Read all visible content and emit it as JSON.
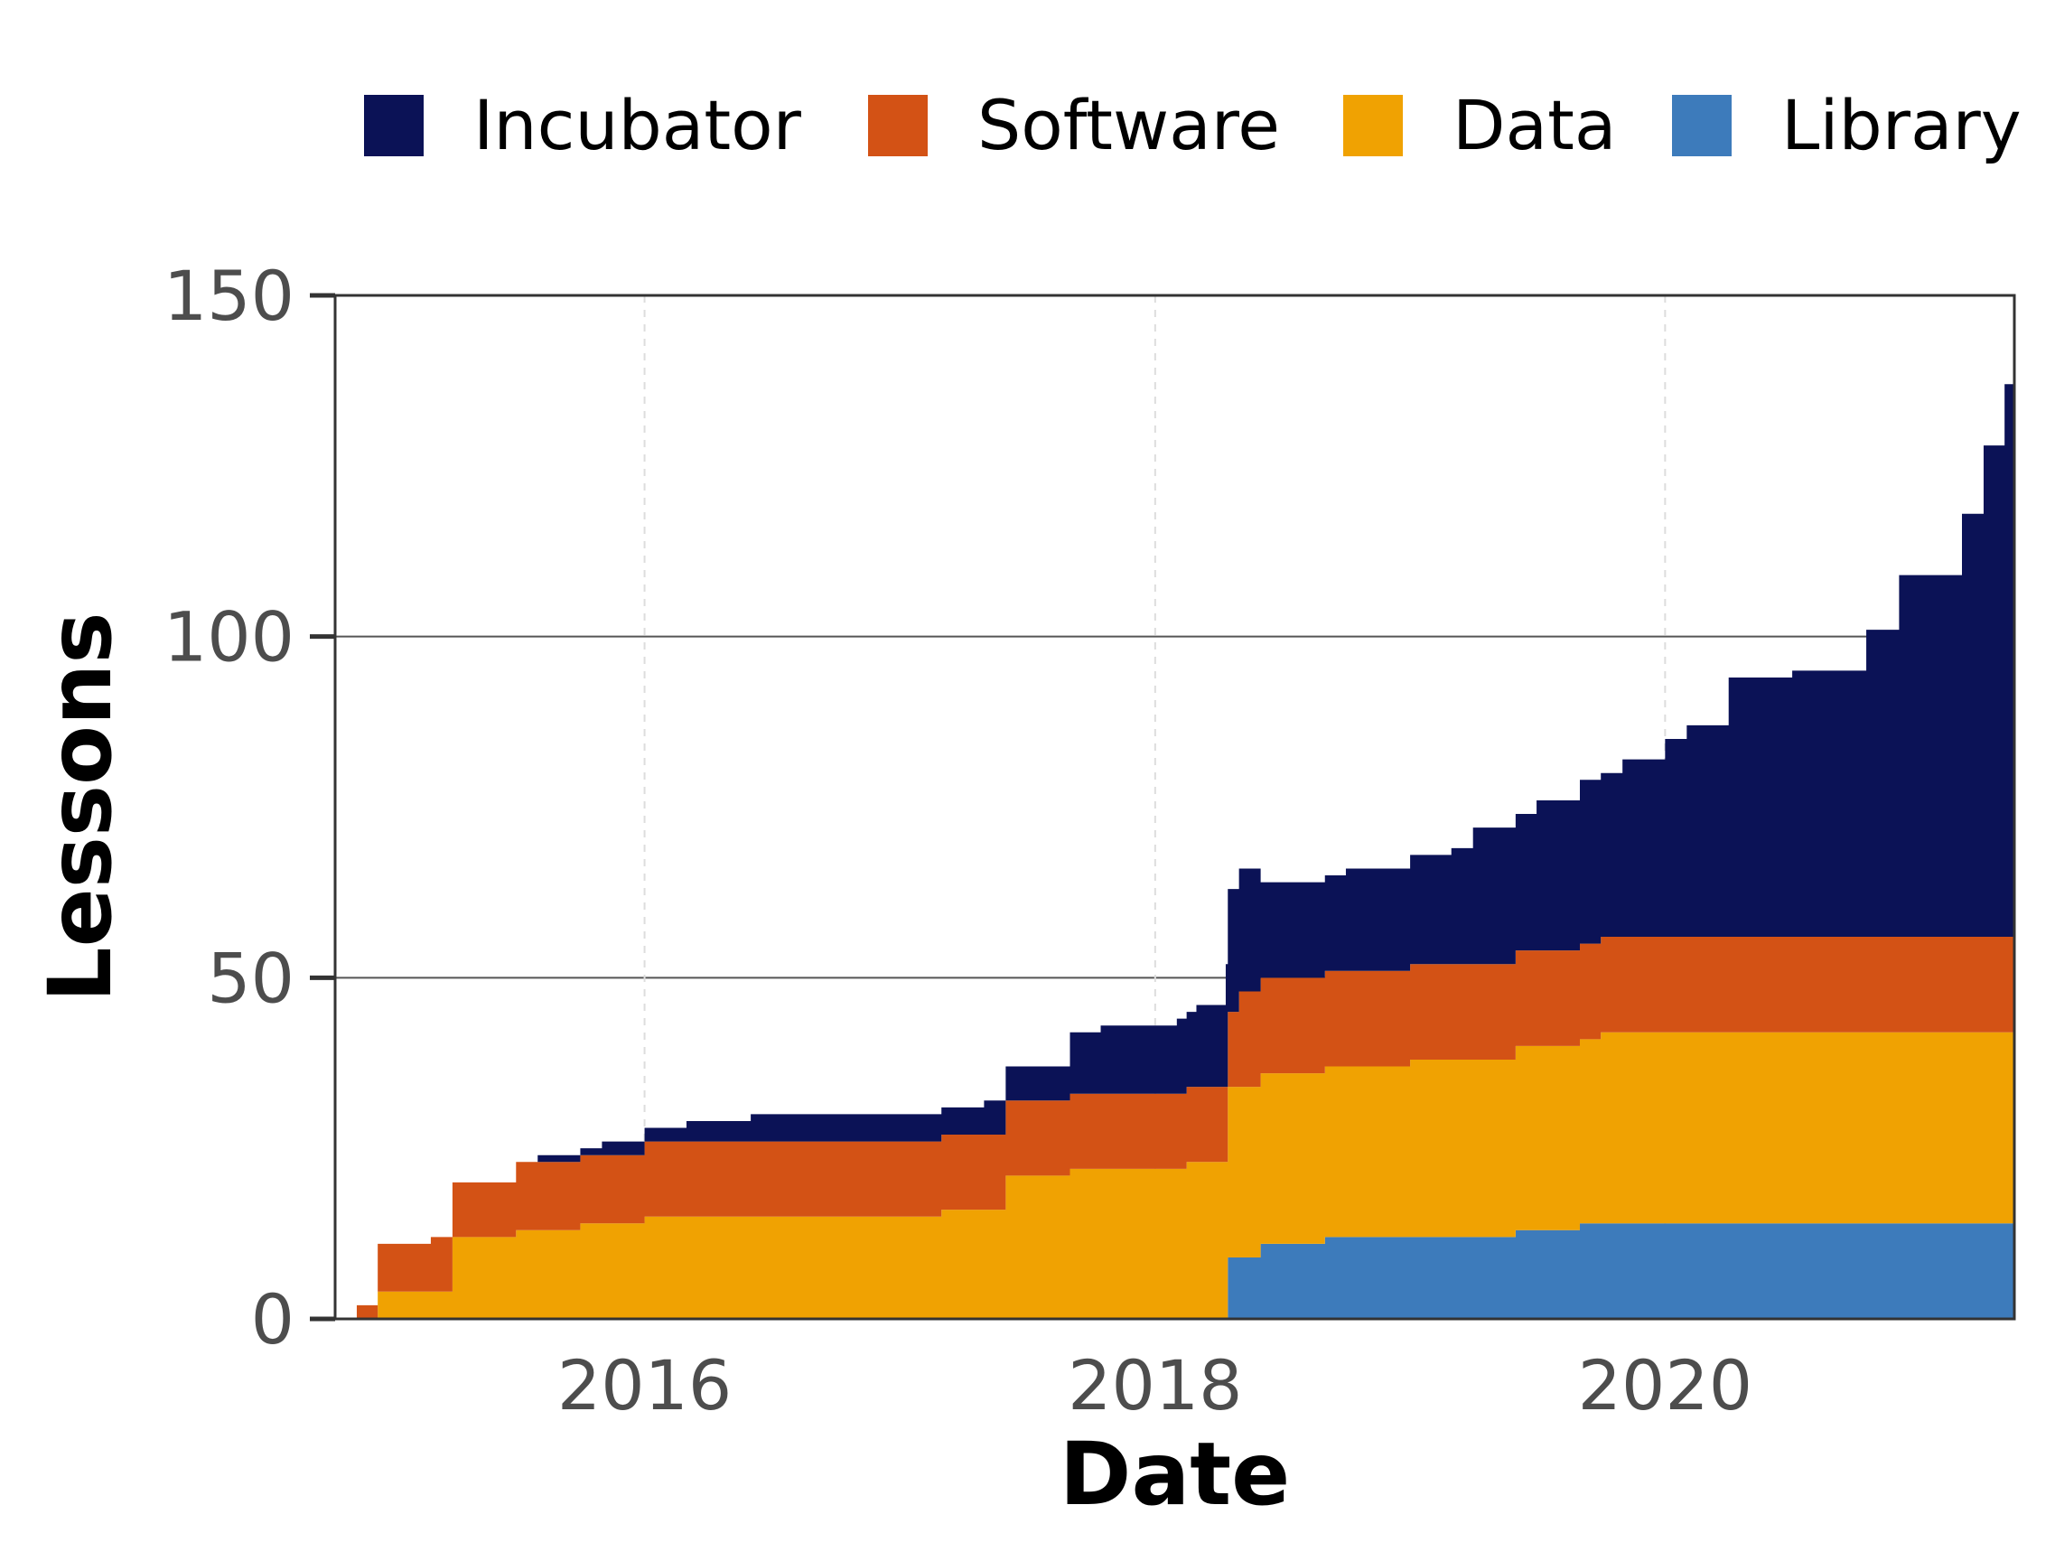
{
  "chart_data": {
    "type": "area",
    "stacked": true,
    "step": true,
    "title": "",
    "xlabel": "Date",
    "ylabel": "Lessons",
    "xlim": [
      "2014-10-15",
      "2021-05-15"
    ],
    "ylim": [
      0,
      150
    ],
    "x_ticks": [
      "2016",
      "2018",
      "2020"
    ],
    "x_tick_dates": [
      "2016-01-01",
      "2018-01-01",
      "2020-01-01"
    ],
    "y_ticks": [
      0,
      50,
      100,
      150
    ],
    "grid": {
      "major_y": true,
      "minor_x": "dashed",
      "major_x": false
    },
    "legend": {
      "position": "top"
    },
    "series": [
      {
        "name": "Incubator",
        "color": "#0b1256",
        "points": [
          [
            "2014-10-15",
            0
          ],
          [
            "2015-08-01",
            1
          ],
          [
            "2015-11-01",
            2
          ],
          [
            "2016-03-01",
            3
          ],
          [
            "2016-06-01",
            4
          ],
          [
            "2017-05-01",
            5
          ],
          [
            "2017-09-01",
            9
          ],
          [
            "2017-10-15",
            10
          ],
          [
            "2018-01-01",
            10
          ],
          [
            "2018-02-01",
            11
          ],
          [
            "2018-03-01",
            12
          ],
          [
            "2018-04-12",
            18
          ],
          [
            "2018-05-01",
            18
          ],
          [
            "2018-06-01",
            14
          ],
          [
            "2018-06-15",
            14
          ],
          [
            "2018-08-01",
            14
          ],
          [
            "2018-10-01",
            15
          ],
          [
            "2019-01-01",
            16
          ],
          [
            "2019-03-01",
            17
          ],
          [
            "2019-04-01",
            20
          ],
          [
            "2019-07-01",
            22
          ],
          [
            "2019-09-01",
            24
          ],
          [
            "2019-11-01",
            26
          ],
          [
            "2020-01-01",
            29
          ],
          [
            "2020-02-01",
            31
          ],
          [
            "2020-04-01",
            38
          ],
          [
            "2020-07-01",
            39
          ],
          [
            "2020-10-15",
            45
          ],
          [
            "2020-12-01",
            53
          ],
          [
            "2021-02-15",
            53
          ],
          [
            "2021-03-01",
            62
          ],
          [
            "2021-04-01",
            72
          ],
          [
            "2021-05-01",
            81
          ],
          [
            "2021-05-15",
            81
          ]
        ]
      },
      {
        "name": "Software",
        "color": "#d35215",
        "points": [
          [
            "2014-10-15",
            0
          ],
          [
            "2014-11-15",
            2
          ],
          [
            "2014-12-15",
            7
          ],
          [
            "2015-03-01",
            8
          ],
          [
            "2015-05-01",
            8
          ],
          [
            "2015-07-01",
            10
          ],
          [
            "2015-10-01",
            10
          ],
          [
            "2016-01-01",
            11
          ],
          [
            "2017-03-01",
            11
          ],
          [
            "2017-06-01",
            11
          ],
          [
            "2018-04-01",
            11
          ],
          [
            "2018-05-01",
            14
          ],
          [
            "2019-01-01",
            14
          ],
          [
            "2019-06-01",
            14
          ],
          [
            "2019-10-01",
            14
          ],
          [
            "2021-05-15",
            14
          ]
        ]
      },
      {
        "name": "Data",
        "color": "#f0a202",
        "points": [
          [
            "2014-10-15",
            0
          ],
          [
            "2014-12-15",
            4
          ],
          [
            "2015-04-01",
            12
          ],
          [
            "2015-07-01",
            13
          ],
          [
            "2015-10-01",
            14
          ],
          [
            "2016-01-01",
            15
          ],
          [
            "2017-03-01",
            16
          ],
          [
            "2017-06-01",
            21
          ],
          [
            "2017-09-01",
            22
          ],
          [
            "2018-02-15",
            23
          ],
          [
            "2018-04-15",
            25
          ],
          [
            "2018-06-01",
            25
          ],
          [
            "2018-09-01",
            25
          ],
          [
            "2019-01-01",
            26
          ],
          [
            "2019-06-01",
            27
          ],
          [
            "2019-10-01",
            28
          ],
          [
            "2021-05-15",
            28
          ]
        ]
      },
      {
        "name": "Library",
        "color": "#3d7bbb",
        "points": [
          [
            "2014-10-15",
            0
          ],
          [
            "2018-04-15",
            9
          ],
          [
            "2018-06-01",
            11
          ],
          [
            "2018-09-01",
            12
          ],
          [
            "2019-06-01",
            13
          ],
          [
            "2019-09-01",
            14
          ],
          [
            "2021-05-15",
            14
          ]
        ]
      }
    ]
  }
}
